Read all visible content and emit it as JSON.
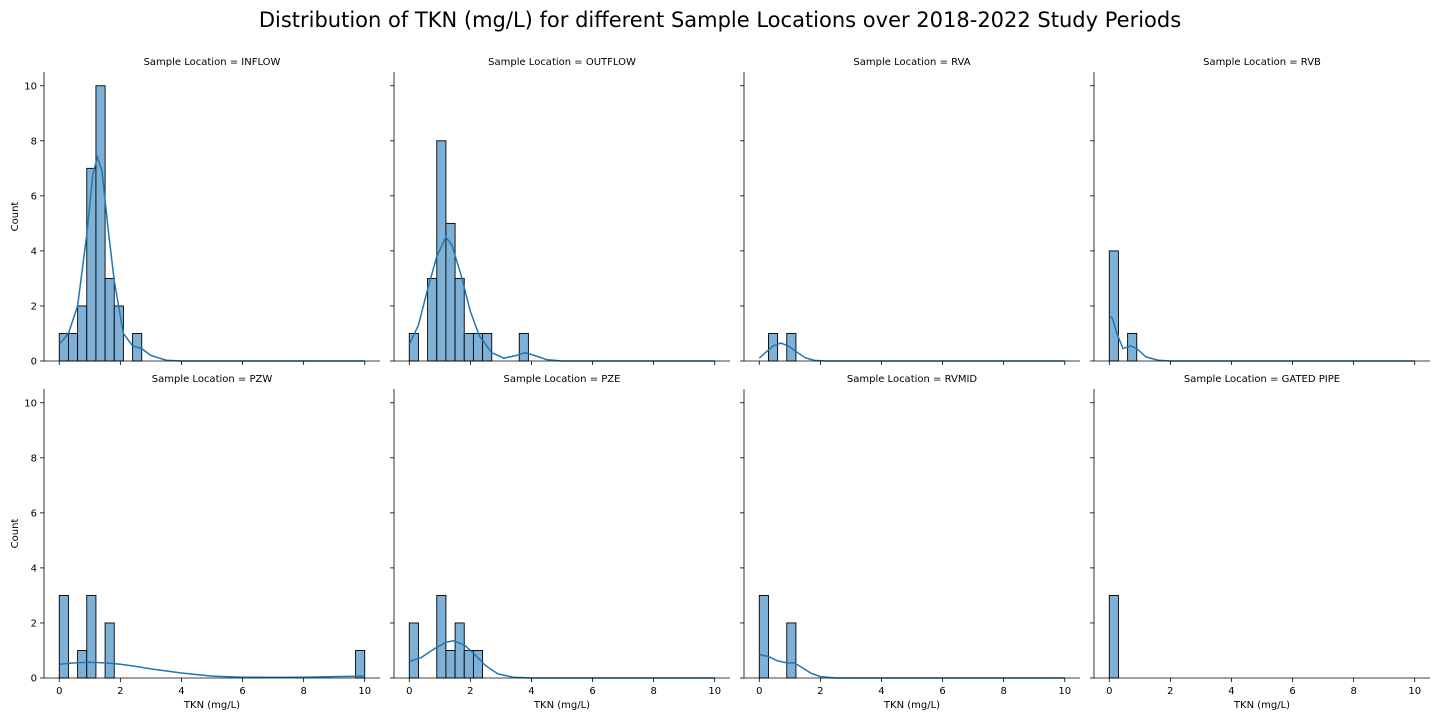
{
  "figure_title": "Distribution of TKN (mg/L) for different Sample Locations over 2018-2022 Study Periods",
  "xlabel": "TKN (mg/L)",
  "ylabel": "Count",
  "chart_data": {
    "type": "bar",
    "title": "Distribution of TKN (mg/L) for different Sample Locations over 2018-2022 Study Periods",
    "xlabel": "TKN (mg/L)",
    "ylabel": "Count",
    "xlim": [
      -0.5,
      10.5
    ],
    "ylim": [
      0,
      10.5
    ],
    "xticks": [
      0,
      2,
      4,
      6,
      8,
      10
    ],
    "yticks": [
      0,
      2,
      4,
      6,
      8,
      10
    ],
    "bin_width": 0.3,
    "bar_color": "#7fb1d6",
    "kde_color": "#1f77b4",
    "panels": [
      {
        "title": "Sample Location = INFLOW",
        "bins": [
          {
            "x": 0.0,
            "count": 1
          },
          {
            "x": 0.3,
            "count": 1
          },
          {
            "x": 0.6,
            "count": 2
          },
          {
            "x": 0.9,
            "count": 7
          },
          {
            "x": 1.2,
            "count": 10
          },
          {
            "x": 1.5,
            "count": 3
          },
          {
            "x": 1.8,
            "count": 2
          },
          {
            "x": 2.4,
            "count": 1
          }
        ],
        "kde": [
          [
            0,
            0.6
          ],
          [
            0.3,
            1.0
          ],
          [
            0.6,
            2.0
          ],
          [
            0.9,
            4.6
          ],
          [
            1.1,
            6.8
          ],
          [
            1.25,
            7.4
          ],
          [
            1.4,
            6.9
          ],
          [
            1.6,
            4.8
          ],
          [
            1.8,
            2.9
          ],
          [
            2.1,
            1.0
          ],
          [
            2.4,
            0.55
          ],
          [
            2.7,
            0.45
          ],
          [
            3.0,
            0.2
          ],
          [
            3.5,
            0.03
          ],
          [
            4,
            0
          ],
          [
            6,
            0
          ],
          [
            8,
            0
          ],
          [
            10,
            0
          ]
        ]
      },
      {
        "title": "Sample Location = OUTFLOW",
        "bins": [
          {
            "x": 0.0,
            "count": 1
          },
          {
            "x": 0.6,
            "count": 3
          },
          {
            "x": 0.9,
            "count": 8
          },
          {
            "x": 1.2,
            "count": 5
          },
          {
            "x": 1.5,
            "count": 3
          },
          {
            "x": 1.8,
            "count": 1
          },
          {
            "x": 2.1,
            "count": 1
          },
          {
            "x": 2.4,
            "count": 1
          },
          {
            "x": 3.6,
            "count": 1
          }
        ],
        "kde": [
          [
            0,
            0.6
          ],
          [
            0.3,
            1.3
          ],
          [
            0.6,
            2.6
          ],
          [
            0.9,
            3.8
          ],
          [
            1.2,
            4.5
          ],
          [
            1.4,
            4.2
          ],
          [
            1.7,
            3.1
          ],
          [
            2.0,
            1.8
          ],
          [
            2.3,
            0.9
          ],
          [
            2.7,
            0.3
          ],
          [
            3.1,
            0.1
          ],
          [
            3.5,
            0.2
          ],
          [
            3.8,
            0.3
          ],
          [
            4.1,
            0.2
          ],
          [
            4.5,
            0.05
          ],
          [
            5,
            0
          ],
          [
            6,
            0
          ],
          [
            8,
            0
          ],
          [
            10,
            0
          ]
        ]
      },
      {
        "title": "Sample Location = RVA",
        "bins": [
          {
            "x": 0.3,
            "count": 1
          },
          {
            "x": 0.9,
            "count": 1
          }
        ],
        "kde": [
          [
            0,
            0.1
          ],
          [
            0.2,
            0.3
          ],
          [
            0.45,
            0.55
          ],
          [
            0.7,
            0.65
          ],
          [
            0.95,
            0.55
          ],
          [
            1.2,
            0.35
          ],
          [
            1.5,
            0.12
          ],
          [
            1.8,
            0.02
          ],
          [
            2.2,
            0
          ],
          [
            4,
            0
          ],
          [
            6,
            0
          ],
          [
            8,
            0
          ],
          [
            10,
            0
          ]
        ]
      },
      {
        "title": "Sample Location = RVB",
        "bins": [
          {
            "x": 0.0,
            "count": 4
          },
          {
            "x": 0.6,
            "count": 1
          }
        ],
        "kde": [
          [
            0,
            1.65
          ],
          [
            0.1,
            1.55
          ],
          [
            0.25,
            1.0
          ],
          [
            0.45,
            0.45
          ],
          [
            0.7,
            0.55
          ],
          [
            0.9,
            0.45
          ],
          [
            1.2,
            0.15
          ],
          [
            1.6,
            0.03
          ],
          [
            2,
            0
          ],
          [
            4,
            0
          ],
          [
            6,
            0
          ],
          [
            8,
            0
          ],
          [
            10,
            0
          ]
        ]
      },
      {
        "title": "Sample Location = PZW",
        "bins": [
          {
            "x": 0.0,
            "count": 3
          },
          {
            "x": 0.6,
            "count": 1
          },
          {
            "x": 0.9,
            "count": 3
          },
          {
            "x": 1.5,
            "count": 2
          },
          {
            "x": 9.7,
            "count": 1
          }
        ],
        "kde": [
          [
            0,
            0.5
          ],
          [
            0.5,
            0.55
          ],
          [
            1.0,
            0.57
          ],
          [
            1.5,
            0.55
          ],
          [
            2.0,
            0.5
          ],
          [
            2.5,
            0.42
          ],
          [
            3,
            0.33
          ],
          [
            4,
            0.18
          ],
          [
            5,
            0.07
          ],
          [
            6,
            0.03
          ],
          [
            7,
            0.02
          ],
          [
            8,
            0.03
          ],
          [
            9,
            0.05
          ],
          [
            10,
            0.07
          ]
        ]
      },
      {
        "title": "Sample Location = PZE",
        "bins": [
          {
            "x": 0.0,
            "count": 2
          },
          {
            "x": 0.9,
            "count": 3
          },
          {
            "x": 1.2,
            "count": 1
          },
          {
            "x": 1.5,
            "count": 2
          },
          {
            "x": 1.8,
            "count": 1
          },
          {
            "x": 2.1,
            "count": 1
          }
        ],
        "kde": [
          [
            0,
            0.6
          ],
          [
            0.4,
            0.75
          ],
          [
            0.8,
            1.05
          ],
          [
            1.2,
            1.3
          ],
          [
            1.45,
            1.35
          ],
          [
            1.8,
            1.2
          ],
          [
            2.1,
            0.9
          ],
          [
            2.5,
            0.45
          ],
          [
            2.9,
            0.15
          ],
          [
            3.4,
            0.03
          ],
          [
            4,
            0
          ],
          [
            6,
            0
          ],
          [
            8,
            0
          ],
          [
            10,
            0
          ]
        ]
      },
      {
        "title": "Sample Location = RVMID",
        "bins": [
          {
            "x": 0.0,
            "count": 3
          },
          {
            "x": 0.9,
            "count": 2
          }
        ],
        "kde": [
          [
            0,
            0.85
          ],
          [
            0.3,
            0.78
          ],
          [
            0.6,
            0.62
          ],
          [
            0.9,
            0.55
          ],
          [
            1.15,
            0.55
          ],
          [
            1.4,
            0.38
          ],
          [
            1.7,
            0.17
          ],
          [
            2.0,
            0.05
          ],
          [
            2.5,
            0
          ],
          [
            4,
            0
          ],
          [
            6,
            0
          ],
          [
            8,
            0
          ],
          [
            10,
            0
          ]
        ]
      },
      {
        "title": "Sample Location = GATED PIPE",
        "bins": [
          {
            "x": 0.0,
            "count": 3
          }
        ],
        "kde": []
      }
    ]
  }
}
